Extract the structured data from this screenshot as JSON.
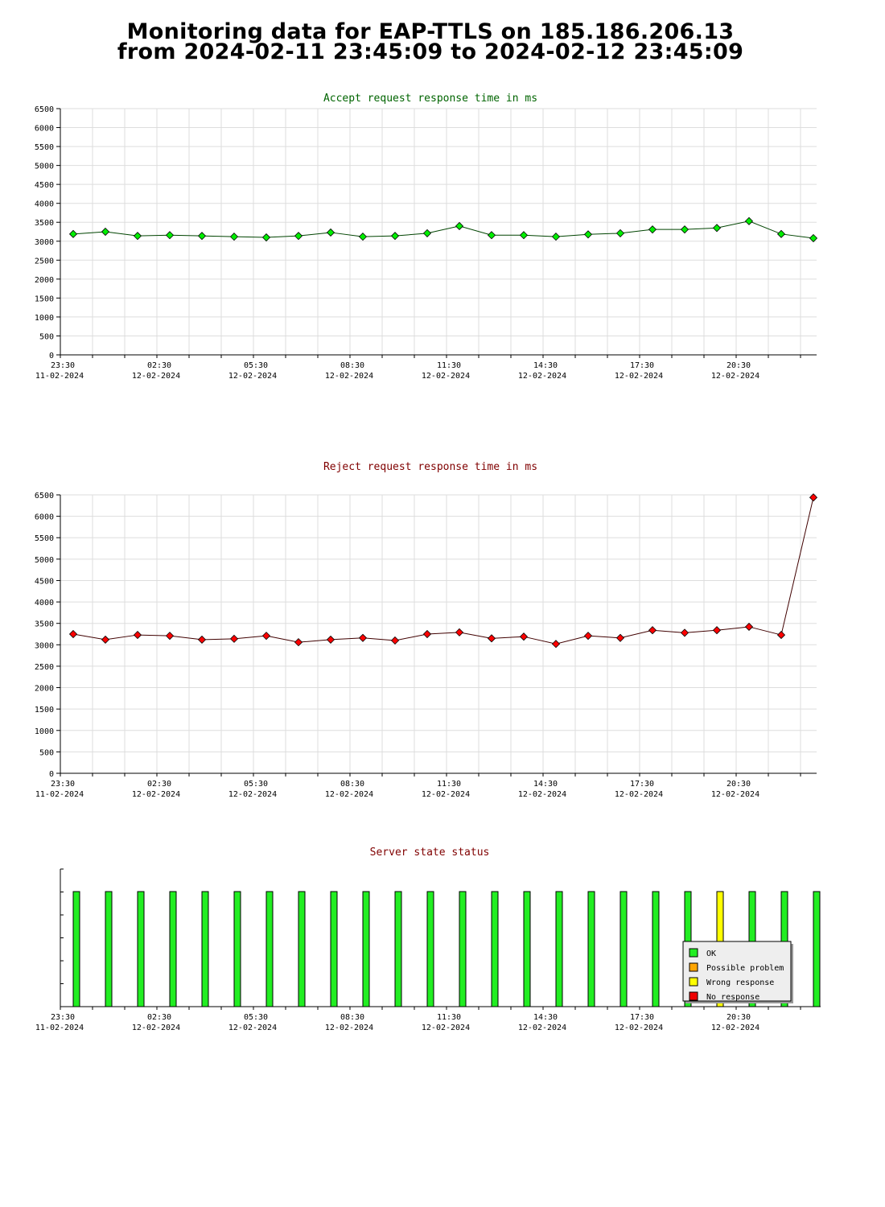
{
  "page": {
    "title_line1": "Monitoring data for EAP-TTLS on 185.186.206.13",
    "title_line2": "from 2024-02-11 23:45:09 to 2024-02-12 23:45:09"
  },
  "x_ticks": [
    {
      "time": "23:30",
      "date": "11-02-2024"
    },
    {
      "time": "02:30",
      "date": "12-02-2024"
    },
    {
      "time": "05:30",
      "date": "12-02-2024"
    },
    {
      "time": "08:30",
      "date": "12-02-2024"
    },
    {
      "time": "11:30",
      "date": "12-02-2024"
    },
    {
      "time": "14:30",
      "date": "12-02-2024"
    },
    {
      "time": "17:30",
      "date": "12-02-2024"
    },
    {
      "time": "20:30",
      "date": "12-02-2024"
    }
  ],
  "colors": {
    "accept_title": "#006400",
    "reject_title": "#800000",
    "status_title": "#800000",
    "accept_point": "#00ee00",
    "reject_point": "#ff0000",
    "ok": "#22ee22",
    "possible_problem": "#ffa500",
    "wrong_response": "#ffff00",
    "no_response": "#ee0000",
    "grid": "#dddddd"
  },
  "chart_data": [
    {
      "type": "line",
      "title": "Accept request response time in ms",
      "xlabel": "",
      "ylabel": "",
      "ylim": [
        0,
        6500
      ],
      "y_ticks": [
        0,
        500,
        1000,
        1500,
        2000,
        2500,
        3000,
        3500,
        4000,
        4500,
        5000,
        5500,
        6000,
        6500
      ],
      "x": [
        "00:00",
        "01:00",
        "02:00",
        "03:00",
        "04:00",
        "05:00",
        "06:00",
        "07:00",
        "08:00",
        "09:00",
        "10:00",
        "11:00",
        "12:00",
        "13:00",
        "14:00",
        "15:00",
        "16:00",
        "17:00",
        "18:00",
        "19:00",
        "20:00",
        "21:00",
        "22:00",
        "23:00"
      ],
      "values": [
        3190,
        3250,
        3140,
        3160,
        3140,
        3120,
        3100,
        3140,
        3230,
        3120,
        3140,
        3210,
        3400,
        3160,
        3160,
        3120,
        3180,
        3210,
        3310,
        3310,
        3350,
        3530,
        3190,
        3080
      ],
      "grid": true
    },
    {
      "type": "line",
      "title": "Reject request response time in ms",
      "xlabel": "",
      "ylabel": "",
      "ylim": [
        0,
        6500
      ],
      "y_ticks": [
        0,
        500,
        1000,
        1500,
        2000,
        2500,
        3000,
        3500,
        4000,
        4500,
        5000,
        5500,
        6000,
        6500
      ],
      "x": [
        "00:00",
        "01:00",
        "02:00",
        "03:00",
        "04:00",
        "05:00",
        "06:00",
        "07:00",
        "08:00",
        "09:00",
        "10:00",
        "11:00",
        "12:00",
        "13:00",
        "14:00",
        "15:00",
        "16:00",
        "17:00",
        "18:00",
        "19:00",
        "20:00",
        "21:00",
        "22:00",
        "23:00"
      ],
      "values": [
        3250,
        3120,
        3230,
        3210,
        3120,
        3140,
        3210,
        3060,
        3120,
        3160,
        3100,
        3250,
        3290,
        3150,
        3190,
        3020,
        3210,
        3160,
        3340,
        3280,
        3340,
        3420,
        3230,
        6440
      ],
      "grid": true
    },
    {
      "type": "bar",
      "title": "Server state status",
      "x": [
        "00:00",
        "01:00",
        "02:00",
        "03:00",
        "04:00",
        "05:00",
        "06:00",
        "07:00",
        "08:00",
        "09:00",
        "10:00",
        "11:00",
        "12:00",
        "13:00",
        "14:00",
        "15:00",
        "16:00",
        "17:00",
        "18:00",
        "19:00",
        "20:00",
        "21:00",
        "22:00",
        "23:00"
      ],
      "states": [
        "OK",
        "OK",
        "OK",
        "OK",
        "OK",
        "OK",
        "OK",
        "OK",
        "OK",
        "OK",
        "OK",
        "OK",
        "OK",
        "OK",
        "OK",
        "OK",
        "OK",
        "OK",
        "OK",
        "OK",
        "Wrong response",
        "OK",
        "OK",
        "OK"
      ],
      "legend_placement": "bottom-right",
      "legend": [
        {
          "label": "OK",
          "color_key": "ok"
        },
        {
          "label": "Possible problem",
          "color_key": "possible_problem"
        },
        {
          "label": "Wrong response",
          "color_key": "wrong_response"
        },
        {
          "label": "No response",
          "color_key": "no_response"
        }
      ]
    }
  ]
}
